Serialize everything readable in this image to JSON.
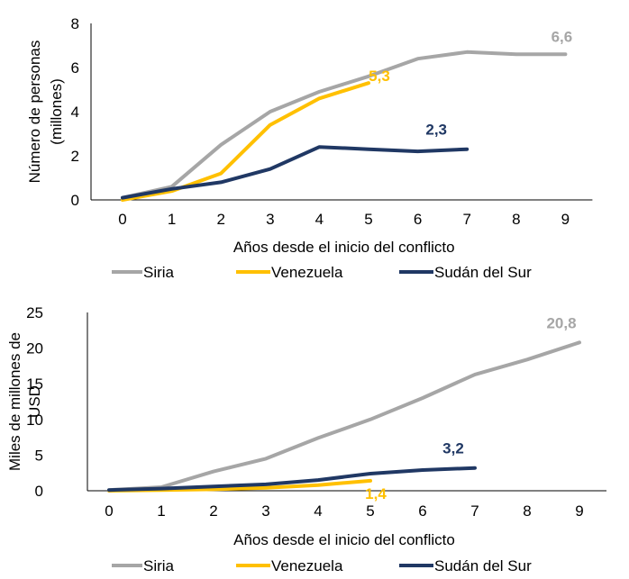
{
  "chart_data": [
    {
      "type": "line",
      "title": "",
      "xlabel": "Años desde el inicio del conflicto",
      "ylabel_lines": [
        "Número de personas",
        "(millones)"
      ],
      "x": [
        0,
        1,
        2,
        3,
        4,
        5,
        6,
        7,
        8,
        9
      ],
      "xticks": [
        "0",
        "1",
        "2",
        "3",
        "4",
        "5",
        "6",
        "7",
        "8",
        "9"
      ],
      "yticks": [
        "0",
        "2",
        "4",
        "6",
        "8"
      ],
      "ylim": [
        0,
        8
      ],
      "grid": false,
      "legend_position": "bottom",
      "series": [
        {
          "name": "Siria",
          "color": "#A6A6A6",
          "values": [
            0.1,
            0.6,
            2.5,
            4.0,
            4.9,
            5.6,
            6.4,
            6.7,
            6.6,
            6.6
          ],
          "label": "6,6",
          "label_at": 9
        },
        {
          "name": "Venezuela",
          "color": "#FFC000",
          "values": [
            0.0,
            0.4,
            1.2,
            3.4,
            4.6,
            5.3,
            null,
            null,
            null,
            null
          ],
          "label": "5,3",
          "label_at": 5
        },
        {
          "name": "Sudán del Sur",
          "color": "#203864",
          "values": [
            0.1,
            0.5,
            0.8,
            1.4,
            2.4,
            2.3,
            2.2,
            2.3,
            null,
            null
          ],
          "label": "2,3",
          "label_at": 7
        }
      ]
    },
    {
      "type": "line",
      "title": "",
      "xlabel": "Años desde el inicio del conflicto",
      "ylabel_lines": [
        "Miles de millones de",
        "USD"
      ],
      "x": [
        0,
        1,
        2,
        3,
        4,
        5,
        6,
        7,
        8,
        9
      ],
      "xticks": [
        "0",
        "1",
        "2",
        "3",
        "4",
        "5",
        "6",
        "7",
        "8",
        "9"
      ],
      "yticks": [
        "0",
        "5",
        "10",
        "15",
        "20",
        "25"
      ],
      "ylim": [
        0,
        25
      ],
      "grid": false,
      "legend_position": "bottom",
      "series": [
        {
          "name": "Siria",
          "color": "#A6A6A6",
          "values": [
            0.1,
            0.5,
            2.7,
            4.5,
            7.4,
            10.0,
            13.0,
            16.3,
            18.4,
            20.8
          ],
          "label": "20,8",
          "label_at": 9
        },
        {
          "name": "Venezuela",
          "color": "#FFC000",
          "values": [
            0.0,
            0.1,
            0.2,
            0.4,
            0.8,
            1.4,
            null,
            null,
            null,
            null
          ],
          "label": "1,4",
          "label_at": 5
        },
        {
          "name": "Sudán del Sur",
          "color": "#203864",
          "values": [
            0.1,
            0.3,
            0.6,
            0.9,
            1.5,
            2.4,
            2.9,
            3.2,
            null,
            null
          ],
          "label": "3,2",
          "label_at": 7
        }
      ]
    }
  ]
}
